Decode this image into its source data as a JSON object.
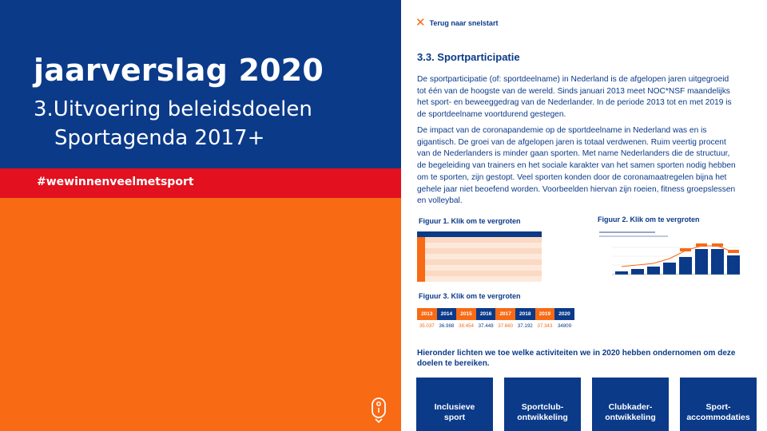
{
  "colors": {
    "blue": "#0b3a89",
    "red": "#e3101f",
    "orange": "#f86a14",
    "light_orange": "#fde9db"
  },
  "left": {
    "title": "jaarverslag 2020",
    "subtitle_line1": "3.Uitvoering beleidsdoelen",
    "subtitle_line2": "Sportagenda 2017+",
    "hashtag": "#wewinnenveelmetsport",
    "scroll_icon": "scroll-down-icon"
  },
  "right": {
    "back_link": {
      "icon": "close-x-icon",
      "label": "Terug naar snelstart"
    },
    "section_title": "3.3. Sportparticipatie",
    "paragraph1": "De sportparticipatie (of: sportdeelname) in Nederland is de afgelopen jaren uitgegroeid tot één van de hoogste van de wereld. Sinds januari 2013 meet NOC*NSF maandelijks het sport- en beweeggedrag van de Nederlander. In de periode 2013 tot en met 2019 is de sportdeelname voortdurend gestegen.",
    "paragraph2": "De impact van de coronapandemie op de sportdeelname in Nederland was en is gigantisch. De groei van de afgelopen jaren is totaal verdwenen. Ruim veertig procent van de Nederlanders is minder gaan sporten. Met name Nederlanders die de structuur, de begeleiding van trainers en het sociale karakter van het samen sporten nodig hebben om te sporten, zijn gestopt. Veel sporten konden door de coronamaatregelen bijna het gehele jaar niet beoefend worden. Voorbeelden hiervan zijn roeien, fitness groepslessen en volleybal.",
    "figure1_label": "Figuur 1. Klik om te vergroten",
    "figure2_label": "Figuur 2. Klik om te vergroten",
    "figure3_label": "Figuur 3. Klik om te vergroten",
    "figure3": {
      "years": [
        "2013",
        "2014",
        "2015",
        "2016",
        "2017",
        "2018",
        "2019",
        "2020"
      ],
      "values": [
        "35.037",
        "36.988",
        "38.454",
        "37.448",
        "37.660",
        "37.192",
        "37.343",
        "34809"
      ],
      "year_colors": [
        "#f86a14",
        "#0b3a89",
        "#f86a14",
        "#0b3a89",
        "#f86a14",
        "#0b3a89",
        "#f86a14",
        "#0b3a89"
      ],
      "value_colors": [
        "#f86a14",
        "#0b3a89",
        "#f86a14",
        "#0b3a89",
        "#f86a14",
        "#0b3a89",
        "#f86a14",
        "#0b3a89"
      ]
    },
    "intro": "Hieronder lichten we toe welke activiteiten we in 2020 hebben ondernomen om deze doelen te bereiken.",
    "tiles": [
      {
        "line1": "Inclusieve",
        "line2": "sport"
      },
      {
        "line1": "Sportclub-",
        "line2": "ontwikkeling"
      },
      {
        "line1": "Clubkader-",
        "line2": "ontwikkeling"
      },
      {
        "line1": "Sport-",
        "line2": "accommodaties"
      }
    ]
  }
}
